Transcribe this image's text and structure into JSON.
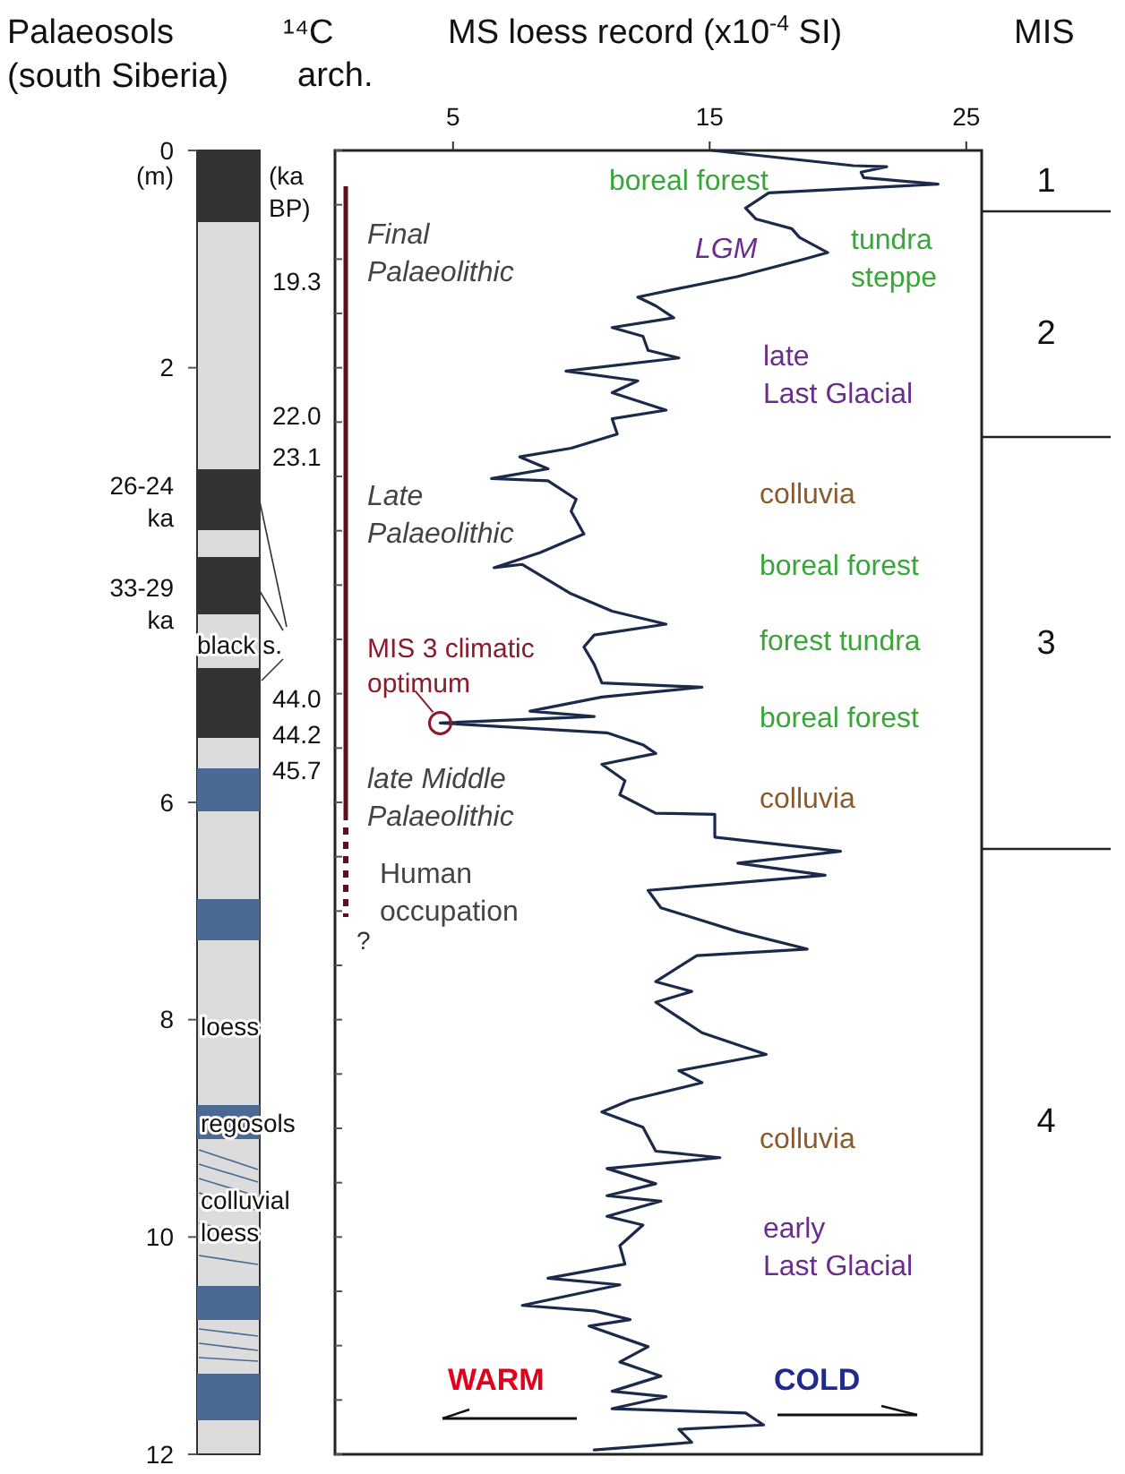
{
  "chart_data": {
    "type": "line",
    "title": "MS loess record (x10$^{-4}$ SI)",
    "ylabel": "(m)",
    "xlim": [
      0.4,
      25.6
    ],
    "xticks": [
      5,
      15,
      25
    ],
    "ylim": [
      12,
      0
    ],
    "yticks": [
      0,
      {
        "value": 0.5,
        "label": null
      },
      {
        "value": 1,
        "label": null
      },
      {
        "value": 1.5,
        "label": null
      },
      2,
      {
        "value": 2.5,
        "label": null
      },
      {
        "value": 3,
        "label": null
      },
      {
        "value": 3.5,
        "label": null
      },
      {
        "value": 4,
        "label": null
      },
      {
        "value": 4.5,
        "label": null
      },
      {
        "value": 5,
        "label": null
      },
      {
        "value": 5.5,
        "label": null
      },
      6,
      {
        "value": 6.5,
        "label": null
      },
      {
        "value": 7,
        "label": null
      },
      {
        "value": 7.5,
        "label": null
      },
      8,
      {
        "value": 8.5,
        "label": null
      },
      {
        "value": 9,
        "label": null
      },
      {
        "value": 9.5,
        "label": null
      },
      10,
      {
        "value": 10.5,
        "label": null
      },
      {
        "value": 11,
        "label": null
      },
      {
        "value": 11.5,
        "label": null
      },
      12
    ],
    "series": [
      {
        "color": "#1b2a4a",
        "x": [
          15.1,
          20.6,
          21.9,
          20.9,
          21.0,
          23.9,
          17.3,
          16.4,
          16.8,
          18.2,
          18.5,
          19.6,
          18.7,
          16.1,
          13.8,
          12.2,
          12.9,
          13.6,
          11.2,
          12.4,
          12.6,
          13.8,
          9.4,
          12.2,
          11.2,
          13.3,
          11.2,
          11.4,
          9.6,
          7.6,
          8.7,
          6.5,
          8.7,
          9.8,
          9.6,
          10.1,
          8.4,
          6.6,
          7.7,
          9.6,
          11.2,
          13.3,
          10.5,
          10.1,
          10.5,
          10.8,
          14.7,
          10.8,
          8.0,
          10.5,
          4.5,
          11.0,
          12.4,
          12.9,
          10.8,
          11.7,
          11.5,
          12.9,
          15.2,
          15.2,
          20.1,
          16.1,
          19.5,
          12.6,
          13.1,
          16.1,
          18.8,
          14.5,
          12.9,
          14.3,
          12.9,
          14.7,
          17.2,
          13.8,
          14.7,
          11.9,
          10.8,
          12.4,
          12.9,
          15.4,
          11.0,
          12.9,
          11.0,
          13.1,
          11.0,
          12.4,
          11.5,
          11.7,
          8.7,
          11.5,
          7.7,
          10.5,
          11.9,
          10.3,
          12.6,
          11.5,
          13.1,
          11.2,
          13.3,
          11.2,
          16.4,
          17.1,
          13.8,
          14.3,
          10.5
        ],
        "values": [
          0,
          0.14,
          0.15,
          0.2,
          0.25,
          0.31,
          0.39,
          0.53,
          0.63,
          0.72,
          0.8,
          0.94,
          1.0,
          1.16,
          1.27,
          1.35,
          1.43,
          1.54,
          1.63,
          1.71,
          1.84,
          1.91,
          2.03,
          2.12,
          2.23,
          2.39,
          2.47,
          2.61,
          2.74,
          2.82,
          2.93,
          3.02,
          3.04,
          3.21,
          3.32,
          3.53,
          3.7,
          3.84,
          3.81,
          4.08,
          4.24,
          4.36,
          4.46,
          4.57,
          4.73,
          4.9,
          4.94,
          5.03,
          5.16,
          5.21,
          5.27,
          5.36,
          5.47,
          5.55,
          5.65,
          5.8,
          5.93,
          6.1,
          6.11,
          6.32,
          6.45,
          6.56,
          6.67,
          6.81,
          6.97,
          7.19,
          7.35,
          7.41,
          7.65,
          7.74,
          7.84,
          8.12,
          8.32,
          8.47,
          8.58,
          8.74,
          8.85,
          8.99,
          9.21,
          9.27,
          9.37,
          9.51,
          9.62,
          9.67,
          9.81,
          9.89,
          10.08,
          10.25,
          10.38,
          10.44,
          10.63,
          10.68,
          10.76,
          10.82,
          11.01,
          11.15,
          11.28,
          11.42,
          11.47,
          11.58,
          11.62,
          11.73,
          11.77,
          11.89,
          11.96
        ]
      }
    ],
    "annotations": [
      "Palaeosols (south Siberia)",
      "¹⁴C",
      "arch.",
      "MIS",
      "(ka BP)",
      "19.3",
      "22.0",
      "23.1",
      "44.0",
      "44.2",
      "45.7",
      "26-24 ka",
      "33-29 ka",
      "black s.",
      "loess",
      "regosols",
      "colluvial loess",
      "boreal forest",
      "LGM",
      "tundra steppe",
      "Final Palaeolithic",
      "late Last Glacial",
      "Late Palaeolithic",
      "colluvia",
      "boreal forest",
      "forest tundra",
      {
        "text": "MIS 3 climatic optimum",
        "x": 4.5,
        "y": 5.27
      },
      "boreal forest",
      "late Middle Palaeolithic",
      "colluvia",
      "Human occupation",
      "colluvia",
      "early Last Glacial",
      "WARM",
      "COLD",
      "1",
      "2",
      "3",
      "4",
      "?"
    ],
    "grid": false,
    "line_style": "solid",
    "marker": "none"
  }
}
